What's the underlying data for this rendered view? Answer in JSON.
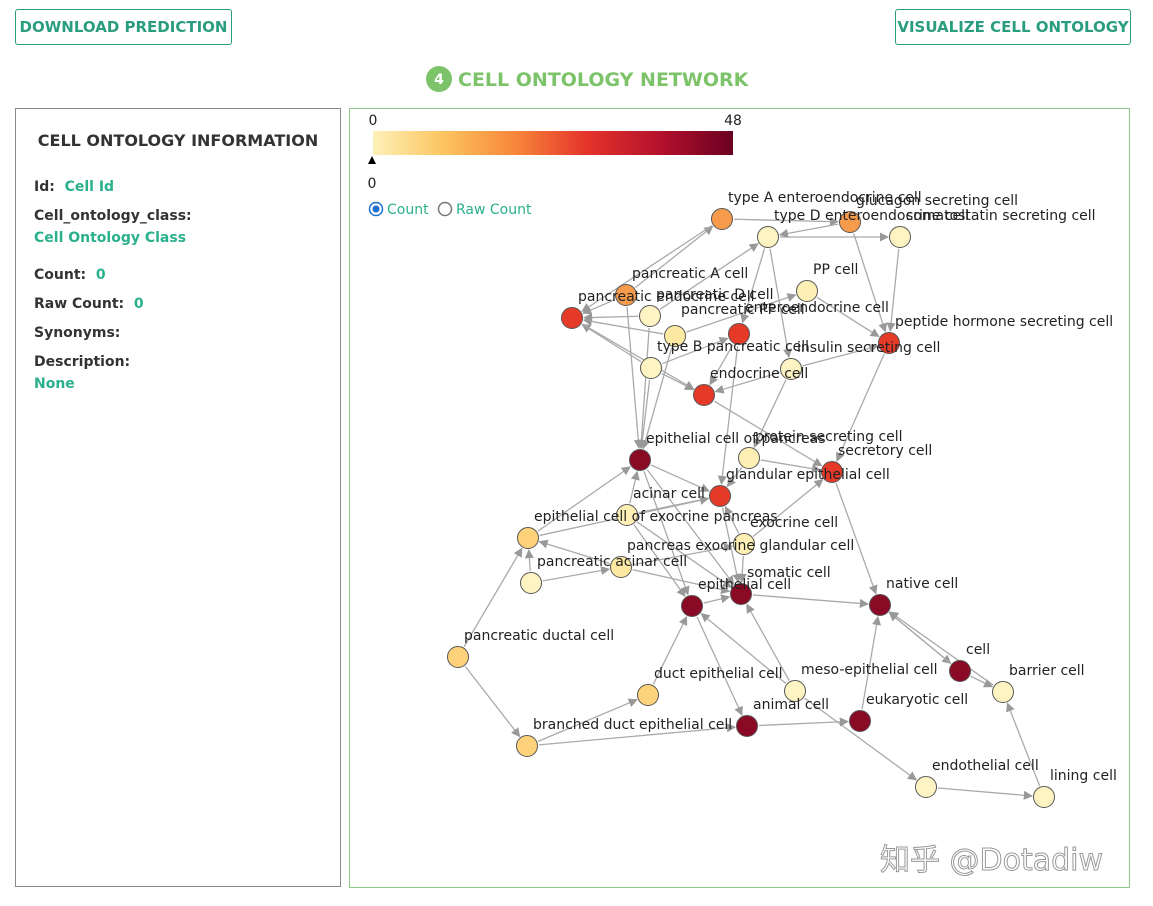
{
  "header": {
    "buttons": [
      "DOWNLOAD PREDICTION",
      "VISUALIZE CELL ONTOLOGY"
    ],
    "step": "4",
    "title": "CELL ONTOLOGY NETWORK"
  },
  "info": {
    "title": "CELL ONTOLOGY INFORMATION",
    "fields": [
      {
        "label": "Id:",
        "value": "Cell Id"
      },
      {
        "label": "Cell_ontology_class:",
        "value": "Cell Ontology Class"
      },
      {
        "label": "Count:",
        "value": "0"
      },
      {
        "label": "Raw Count:",
        "value": "0"
      },
      {
        "label": "Synonyms:"
      },
      {
        "label": "Description:",
        "value": "None"
      }
    ]
  },
  "network": {
    "colorbar": {
      "min": 0,
      "max": 48,
      "marker": "0",
      "colors": [
        "#fdf1b8",
        "#fcc35e",
        "#f7843a",
        "#e3322a",
        "#b3112c",
        "#6a0021"
      ]
    },
    "options": [
      {
        "label": "Count",
        "selected": true
      },
      {
        "label": "Raw Count",
        "selected": false
      }
    ],
    "nodes": [
      {
        "label": "type A enteroendocrine cell",
        "color": "#f69a4b"
      },
      {
        "label": "glucagon secreting cell",
        "color": "#f69a4b"
      },
      {
        "label": "type D enteroendocrine cell",
        "color": "#fef3c3"
      },
      {
        "label": "somatostatin secreting cell",
        "color": "#fef3c3"
      },
      {
        "label": "pancreatic A cell",
        "color": "#f69a4b"
      },
      {
        "label": "pancreatic endocrine cell",
        "color": "#e63a29"
      },
      {
        "label": "pancreatic D cell",
        "color": "#fef3c3"
      },
      {
        "label": "PP cell",
        "color": "#fef0b4"
      },
      {
        "label": "enteroendocrine cell",
        "color": "#e63a29"
      },
      {
        "label": "pancreatic PP cell",
        "color": "#fee9a3"
      },
      {
        "label": "peptide hormone secreting cell",
        "color": "#e63a29"
      },
      {
        "label": "insulin secreting cell",
        "color": "#fef3c3"
      },
      {
        "label": "type B pancreatic cell",
        "color": "#fef3c3"
      },
      {
        "label": "endocrine cell",
        "color": "#e63a29"
      },
      {
        "label": "epithelial cell of pancreas",
        "color": "#8a0a25"
      },
      {
        "label": "protein secreting cell",
        "color": "#fef0b4"
      },
      {
        "label": "secretory cell",
        "color": "#e63a29"
      },
      {
        "label": "glandular epithelial cell",
        "color": "#e63a29"
      },
      {
        "label": "acinar cell",
        "color": "#fef0b4"
      },
      {
        "label": "epithelial cell of exocrine pancreas",
        "color": "#fdd27a"
      },
      {
        "label": "exocrine cell",
        "color": "#fef0b4"
      },
      {
        "label": "pancreas exocrine glandular cell",
        "color": "#fee9a3"
      },
      {
        "label": "pancreatic acinar cell",
        "color": "#fef3c3"
      },
      {
        "label": "epithelial cell",
        "color": "#8a0a25"
      },
      {
        "label": "somatic cell",
        "color": "#8a0a25"
      },
      {
        "label": "native cell",
        "color": "#8a0a25"
      },
      {
        "label": "pancreatic ductal cell",
        "color": "#fdd27a"
      },
      {
        "label": "cell",
        "color": "#8a0a25"
      },
      {
        "label": "meso-epithelial cell",
        "color": "#fef3c3"
      },
      {
        "label": "barrier cell",
        "color": "#fef3c3"
      },
      {
        "label": "duct epithelial cell",
        "color": "#fdd27a"
      },
      {
        "label": "eukaryotic cell",
        "color": "#8a0a25"
      },
      {
        "label": "animal cell",
        "color": "#8a0a25"
      },
      {
        "label": "branched duct epithelial cell",
        "color": "#fdd27a"
      },
      {
        "label": "endothelial cell",
        "color": "#fef3c3"
      },
      {
        "label": "lining cell",
        "color": "#fef3c3"
      }
    ]
  },
  "watermark": "知乎 @Dotadiw"
}
